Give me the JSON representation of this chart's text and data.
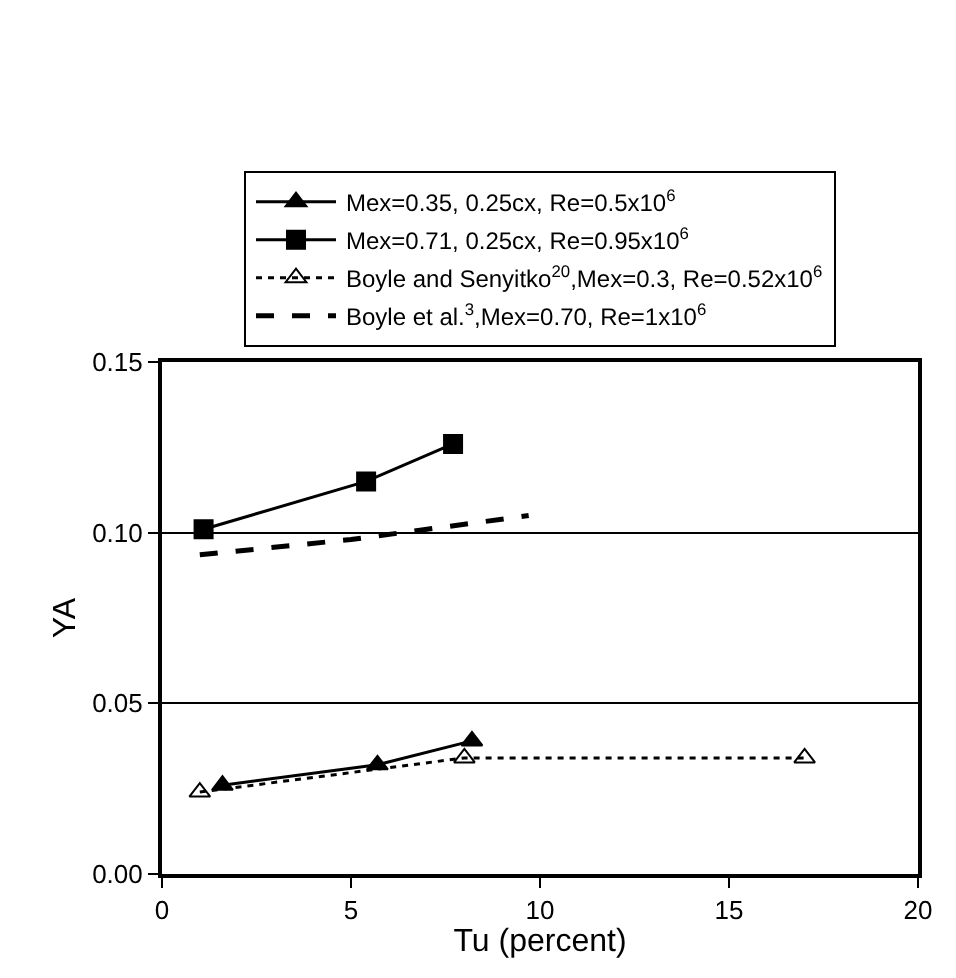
{
  "chart_data": {
    "type": "line",
    "xlabel": "Tu (percent)",
    "ylabel": "YA",
    "series": [
      {
        "name": "Mex=0.35, 0.25cx, Re=0.5x10$^{6}$",
        "color": "#000000",
        "marker": "triangle",
        "line_style": "solid",
        "x": [
          1.6,
          5.7,
          8.2
        ],
        "values": [
          0.026,
          0.032,
          0.039
        ]
      },
      {
        "name": "Mex=0.71, 0.25cx, Re=0.95x10$^{6}$",
        "color": "#000000",
        "marker": "square",
        "line_style": "solid",
        "x": [
          1.1,
          5.4,
          7.7
        ],
        "values": [
          0.101,
          0.115,
          0.126
        ]
      },
      {
        "name": "Boyle and Senyitko$^{20}$,Mex=0.3, Re=0.52x10$^{6}$",
        "color": "#000000",
        "marker": "triangle-open",
        "line_style": "dotted",
        "x": [
          1.0,
          8.0,
          17.0
        ],
        "values": [
          0.024,
          0.034,
          0.034
        ]
      },
      {
        "name": "Boyle et al.$^{3}$,Mex=0.70, Re=1x10$^{6}$",
        "color": "#000000",
        "marker": "none",
        "line_style": "dashed",
        "x": [
          1.0,
          5.0,
          9.7
        ],
        "values": [
          0.0935,
          0.098,
          0.105
        ]
      }
    ],
    "xlim": [
      0,
      20
    ],
    "xticks": [
      0,
      5,
      10,
      15,
      20
    ],
    "ylim": [
      0,
      0.15
    ],
    "yticks": [
      {
        "value": 0,
        "label": "0.00"
      },
      {
        "value": 0.05,
        "label": "0.05"
      },
      {
        "value": 0.1,
        "label": "0.10"
      },
      {
        "value": 0.15,
        "label": "0.15"
      }
    ],
    "grid": "y",
    "legend": "top"
  }
}
